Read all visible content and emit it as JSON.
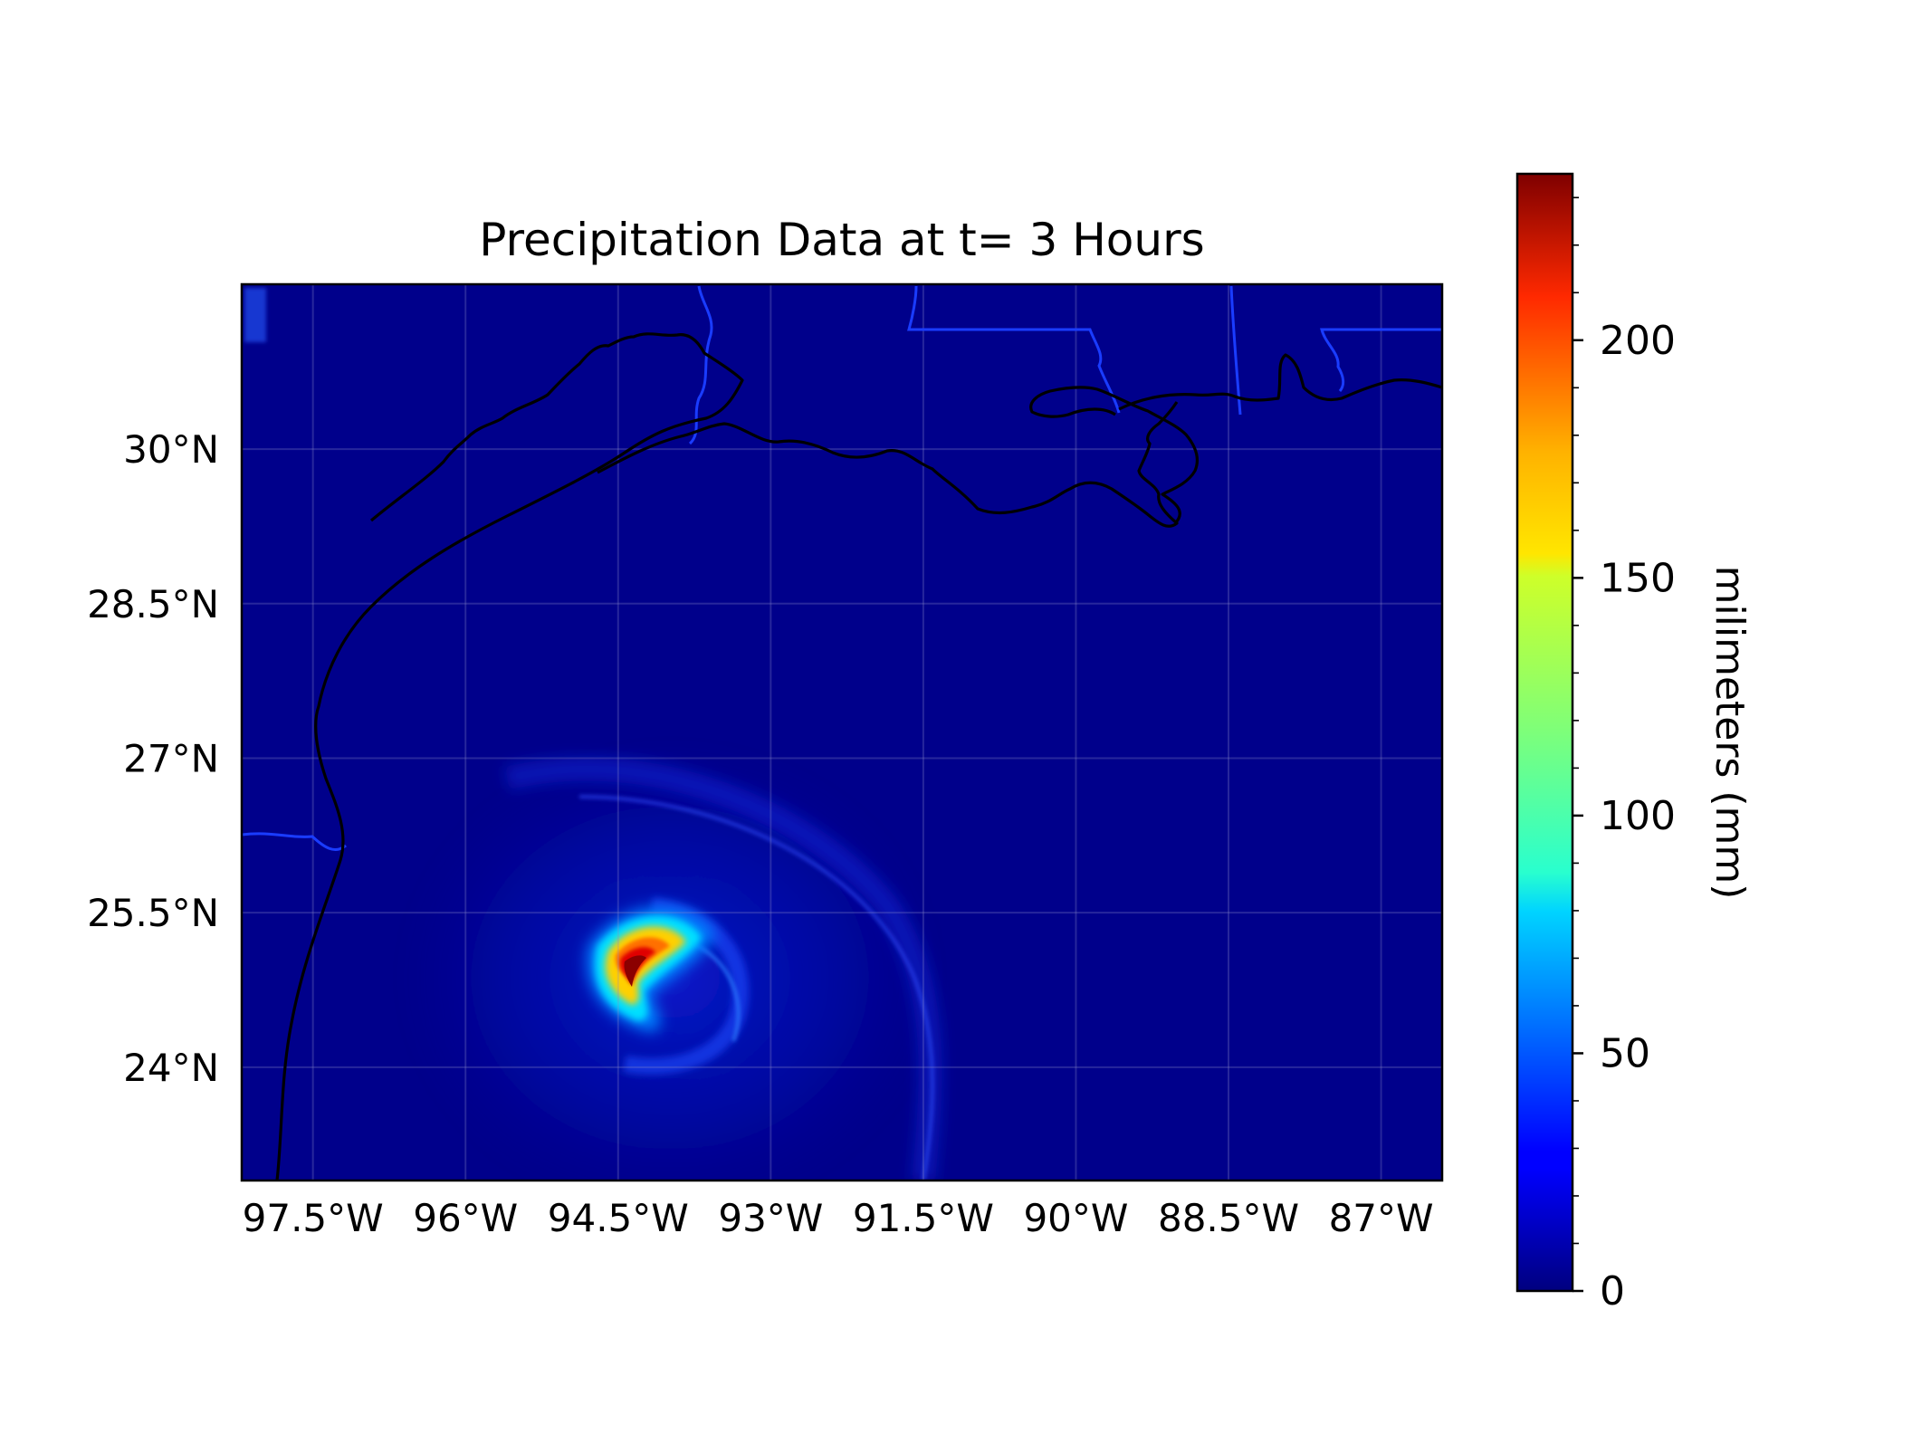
{
  "title": "Precipitation Data at t= 3 Hours",
  "colorbar": {
    "label": "milimeters (mm)",
    "vmin": 0,
    "vmax": 235,
    "colormap": "jet",
    "ticks": [
      {
        "label": "0",
        "value": 0
      },
      {
        "label": "50",
        "value": 50
      },
      {
        "label": "100",
        "value": 100
      },
      {
        "label": "150",
        "value": 150
      },
      {
        "label": "200",
        "value": 200
      }
    ]
  },
  "map": {
    "lon_range": [
      -98.2,
      -86.4
    ],
    "lat_range": [
      22.9,
      31.6
    ],
    "background_color": "#00008b",
    "coastline_color": "#000000",
    "border_color": "#1a3cff",
    "gridlines": true,
    "lon_ticks": [
      {
        "label": "97.5°W",
        "value": -97.5
      },
      {
        "label": "96°W",
        "value": -96
      },
      {
        "label": "94.5°W",
        "value": -94.5
      },
      {
        "label": "93°W",
        "value": -93
      },
      {
        "label": "91.5°W",
        "value": -91.5
      },
      {
        "label": "90°W",
        "value": -90
      },
      {
        "label": "88.5°W",
        "value": -88.5
      },
      {
        "label": "87°W",
        "value": -87
      }
    ],
    "lat_ticks": [
      {
        "label": "30°N",
        "value": 30
      },
      {
        "label": "28.5°N",
        "value": 28.5
      },
      {
        "label": "27°N",
        "value": 27
      },
      {
        "label": "25.5°N",
        "value": 25.5
      },
      {
        "label": "24°N",
        "value": 24
      }
    ],
    "storm": {
      "center_lon": -94.4,
      "center_lat": 24.9,
      "peak_mm": 235
    }
  }
}
